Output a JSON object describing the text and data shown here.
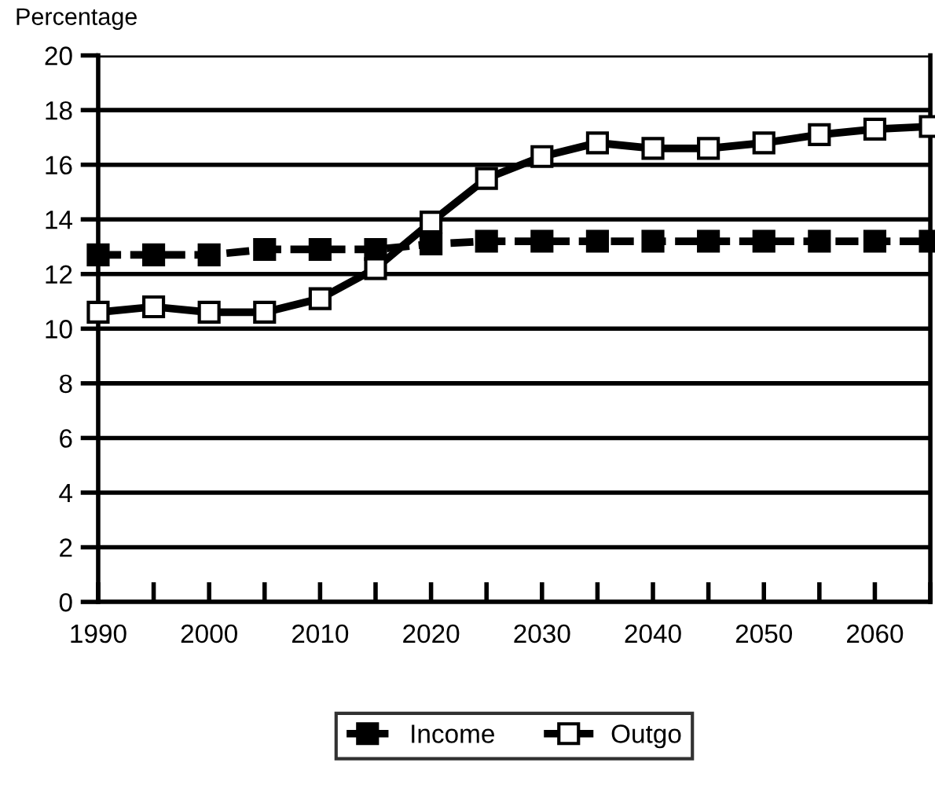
{
  "chart_data": {
    "type": "line",
    "ylabel": "Percentage",
    "x": [
      1990,
      1995,
      2000,
      2005,
      2010,
      2015,
      2020,
      2025,
      2030,
      2035,
      2040,
      2045,
      2050,
      2055,
      2060,
      2065
    ],
    "series": [
      {
        "name": "Income",
        "color": "#000000",
        "line_style": "dashed",
        "values": [
          12.7,
          12.7,
          12.7,
          12.9,
          12.9,
          12.9,
          13.1,
          13.2,
          13.2,
          13.2,
          13.2,
          13.2,
          13.2,
          13.2,
          13.2,
          13.2
        ]
      },
      {
        "name": "Outgo",
        "color": "#000000",
        "line_style": "solid",
        "values": [
          10.6,
          10.8,
          10.6,
          10.6,
          11.1,
          12.2,
          13.9,
          15.5,
          16.3,
          16.8,
          16.6,
          16.6,
          16.8,
          17.1,
          17.3,
          17.4
        ]
      }
    ],
    "marker": "square",
    "xlim": [
      1990,
      2065
    ],
    "xticks": [
      1990,
      {
        "value": 1995,
        "label": null
      },
      2000,
      {
        "value": 2005,
        "label": null
      },
      2010,
      {
        "value": 2015,
        "label": null
      },
      2020,
      {
        "value": 2025,
        "label": null
      },
      2030,
      {
        "value": 2035,
        "label": null
      },
      2040,
      {
        "value": 2045,
        "label": null
      },
      2050,
      {
        "value": 2055,
        "label": null
      },
      2060,
      {
        "value": 2065,
        "label": null
      }
    ],
    "ylim": [
      0,
      20
    ],
    "yticks": [
      0,
      2,
      4,
      6,
      8,
      10,
      12,
      14,
      16,
      18,
      20
    ],
    "grid": "y",
    "legend": "bottom"
  }
}
